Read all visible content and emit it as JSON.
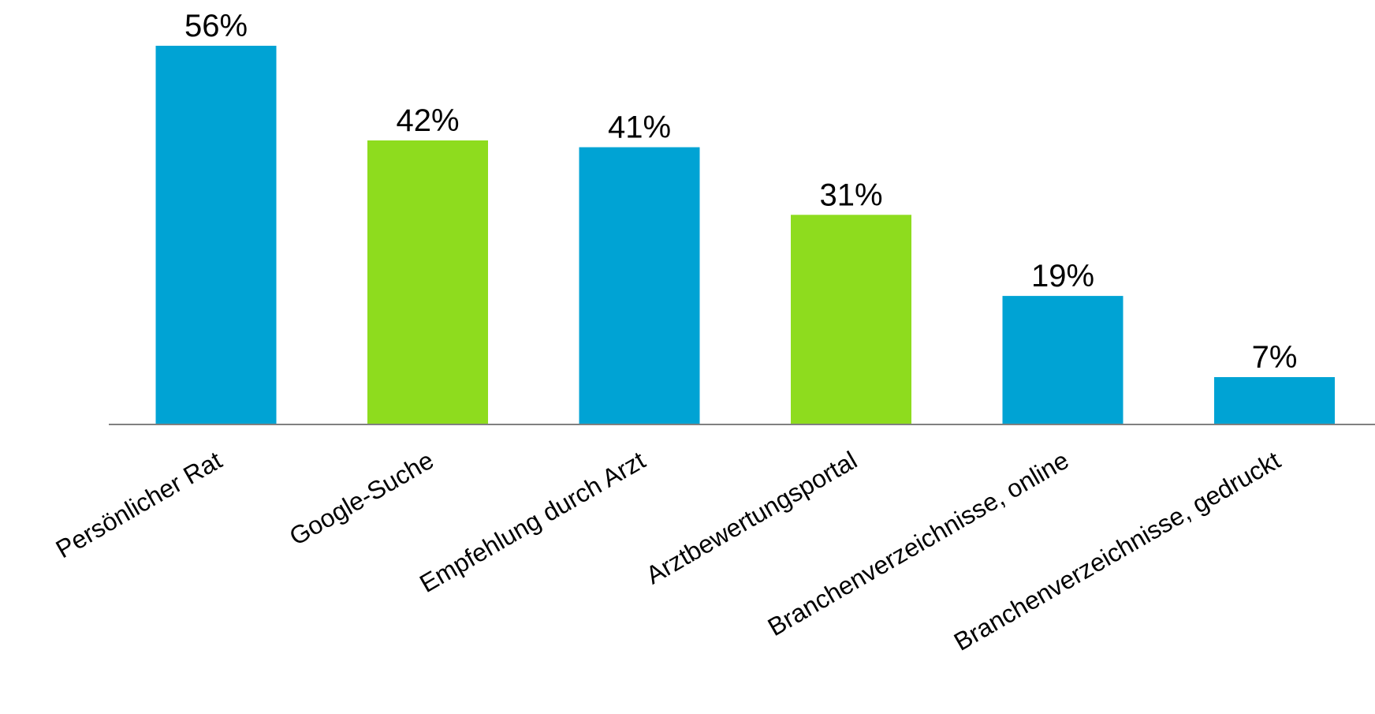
{
  "chart_data": {
    "type": "bar",
    "title": "",
    "xlabel": "",
    "ylabel": "",
    "categories": [
      "Persönlicher Rat",
      "Google-Suche",
      "Empfehlung durch Arzt",
      "Arztbewertungsportal",
      "Branchenverzeichnisse, online",
      "Branchenverzeichnisse, gedruckt"
    ],
    "values": [
      56,
      42,
      41,
      31,
      19,
      7
    ],
    "value_labels": [
      "56%",
      "42%",
      "41%",
      "31%",
      "19%",
      "7%"
    ],
    "unit": "%",
    "ylim": [
      0,
      56
    ],
    "grid": false,
    "legend": "none",
    "colors": [
      "#00A3D4",
      "#8EDC1E",
      "#00A3D4",
      "#8EDC1E",
      "#00A3D4",
      "#00A3D4"
    ],
    "axis_color": "#808080"
  }
}
